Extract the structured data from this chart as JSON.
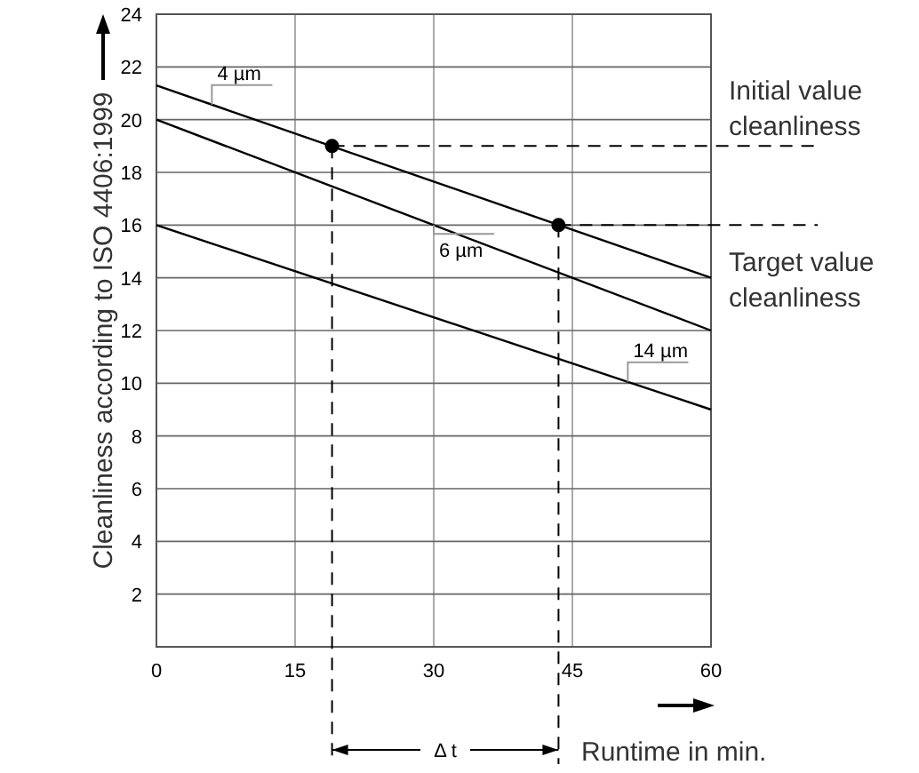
{
  "chart_data": {
    "type": "line",
    "xlabel": "Runtime in min.",
    "ylabel": "Cleanliness according to ISO 4406:1999",
    "xlim": [
      0,
      60
    ],
    "xticks": [
      0,
      15,
      30,
      45,
      60
    ],
    "ylim": [
      0,
      24
    ],
    "yticks": [
      {
        "value": 0,
        "label": null
      },
      2,
      4,
      6,
      8,
      10,
      12,
      14,
      16,
      18,
      20,
      22,
      24
    ],
    "grid": true,
    "series": [
      {
        "name": "4 µm",
        "color": "#000000",
        "x": [
          0,
          60
        ],
        "values": [
          21.3,
          14
        ]
      },
      {
        "name": "6 µm",
        "color": "#000000",
        "x": [
          0,
          60
        ],
        "values": [
          20,
          12
        ]
      },
      {
        "name": "14 µm",
        "color": "#000000",
        "x": [
          0,
          60
        ],
        "values": [
          16,
          9
        ]
      },
      {
        "type": "scatter",
        "color": "#000000",
        "marker": "circle",
        "x": [
          19,
          43.5
        ],
        "values": [
          19,
          16
        ]
      }
    ],
    "ref_lines": [
      {
        "axis": "y",
        "value": 19,
        "label": "Initial value cleanliness",
        "line_style": "dashed"
      },
      {
        "axis": "y",
        "value": 16,
        "label": "Target value cleanliness",
        "line_style": "dashed"
      },
      {
        "axis": "x",
        "value": 19,
        "line_style": "dashed"
      },
      {
        "axis": "x",
        "value": 43.5,
        "line_style": "dashed"
      }
    ],
    "annotations": [
      "Δ t"
    ]
  }
}
